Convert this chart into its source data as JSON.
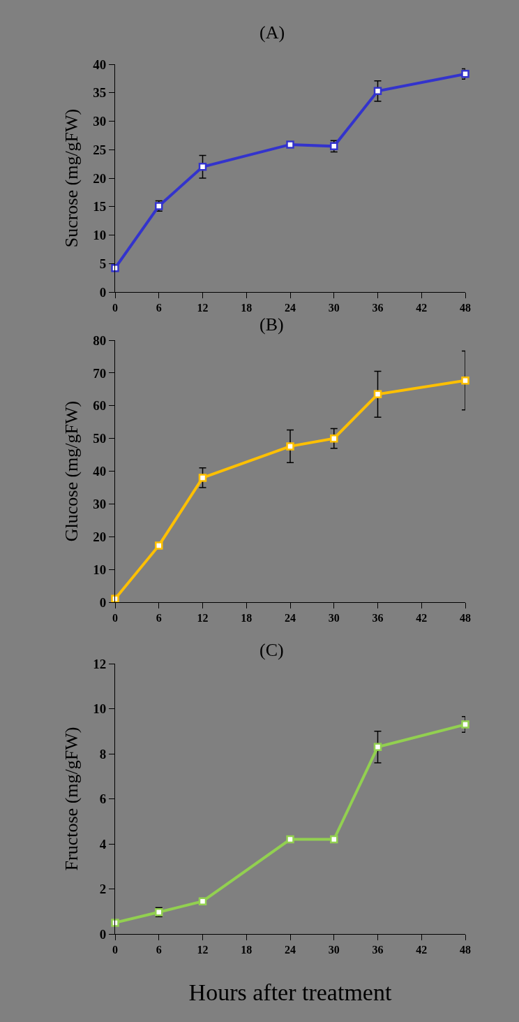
{
  "chart_data": [
    {
      "type": "line",
      "title": "(A)",
      "ylabel": "Sucrose (mg/gFW)",
      "marker": "square",
      "x": [
        0,
        6,
        12,
        24,
        30,
        36,
        48
      ],
      "xlim": [
        0,
        48
      ],
      "xticks": [
        0,
        6,
        12,
        18,
        24,
        30,
        36,
        42,
        48
      ],
      "ylim": [
        0,
        40
      ],
      "yticks": [
        0,
        5,
        10,
        15,
        20,
        25,
        30,
        35,
        40
      ],
      "series": [
        {
          "color": "#3333cc",
          "values": [
            4.2,
            15.1,
            22.0,
            25.9,
            25.6,
            35.3,
            38.3
          ],
          "errors": [
            null,
            0.9,
            2,
            null,
            1,
            1.8,
            0.9
          ]
        }
      ]
    },
    {
      "type": "line",
      "title": "(B)",
      "ylabel": "Glucose (mg/gFW)",
      "marker": "square",
      "x": [
        0,
        6,
        12,
        24,
        30,
        36,
        48
      ],
      "xlim": [
        0,
        48
      ],
      "xticks": [
        0,
        6,
        12,
        18,
        24,
        30,
        36,
        42,
        48
      ],
      "ylim": [
        0,
        80
      ],
      "yticks": [
        0,
        10,
        20,
        30,
        40,
        50,
        60,
        70,
        80
      ],
      "series": [
        {
          "color": "#ffc000",
          "values": [
            1,
            17.3,
            38,
            47.6,
            50,
            63.5,
            67.7
          ],
          "errors": [
            null,
            null,
            3,
            5,
            3,
            7,
            9
          ]
        }
      ]
    },
    {
      "type": "line",
      "title": "(C)",
      "ylabel": "Fructose (mg/gFW)",
      "xlabel": "Hours after treatment",
      "marker": "square",
      "x": [
        0,
        6,
        12,
        24,
        30,
        36,
        48
      ],
      "xlim": [
        0,
        48
      ],
      "xticks": [
        0,
        6,
        12,
        18,
        24,
        30,
        36,
        42,
        48
      ],
      "ylim": [
        0,
        12
      ],
      "yticks": [
        0,
        2,
        4,
        6,
        8,
        10,
        12
      ],
      "series": [
        {
          "color": "#92d050",
          "values": [
            0.5,
            0.97,
            1.45,
            4.2,
            4.2,
            8.3,
            9.3
          ],
          "errors": [
            null,
            0.2,
            null,
            null,
            null,
            0.7,
            0.35
          ]
        }
      ]
    }
  ]
}
